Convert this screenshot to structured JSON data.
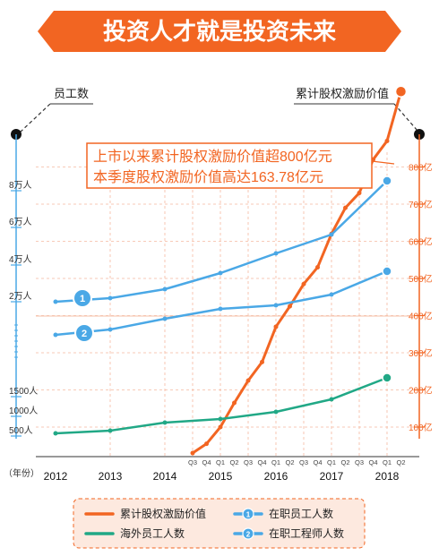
{
  "banner": {
    "title": "投资人才就是投资未来",
    "color": "#f26522"
  },
  "left_axis_title": "员工数",
  "right_axis_title": "累计股权激励价值",
  "callout": {
    "line1": "上市以来累计股权激励价值超800亿元",
    "line2": "本季度股权激励价值高达163.78亿元"
  },
  "year_axis_label": "（年份）",
  "legend": [
    {
      "label": "累计股权激励价值",
      "color": "#f26522",
      "marker": "none"
    },
    {
      "label": "在职员工人数",
      "color": "#4aa8e6",
      "marker": "1"
    },
    {
      "label": "海外员工人数",
      "color": "#21a886",
      "marker": "none"
    },
    {
      "label": "在职工程师人数",
      "color": "#4aa8e6",
      "marker": "2"
    }
  ],
  "chart_data": {
    "type": "line",
    "colors": {
      "equity": "#f26522",
      "staff": "#4aa8e6",
      "engineers": "#4aa8e6",
      "overseas": "#21a886",
      "grid": "#f5b9a0"
    },
    "years": [
      "2012",
      "2013",
      "2014",
      "2015",
      "2016",
      "2017",
      "2018"
    ],
    "quarters": [
      "Q3",
      "Q4",
      "Q1",
      "Q2",
      "Q3",
      "Q4",
      "Q1",
      "Q2",
      "Q3",
      "Q4",
      "Q1",
      "Q2",
      "Q3",
      "Q4",
      "Q1",
      "Q2"
    ],
    "left_axis_ticks": [
      "8万人",
      "6万人",
      "4万人",
      "2万人",
      "1500人",
      "1000人",
      "500人"
    ],
    "right_axis_ticks": [
      "800亿",
      "700亿",
      "600亿",
      "500亿",
      "400亿",
      "300亿",
      "200亿",
      "100亿"
    ],
    "series": [
      {
        "name": "累计股权激励价值",
        "key": "equity",
        "axis": "right",
        "x": [
          0,
          1,
          2,
          3,
          4,
          5,
          6,
          7,
          8,
          9,
          10,
          11,
          12,
          13,
          14,
          15
        ],
        "y": [
          30,
          55,
          100,
          165,
          225,
          275,
          370,
          425,
          485,
          530,
          620,
          690,
          730,
          820,
          870,
          1003
        ]
      },
      {
        "name": "在职员工人数",
        "key": "staff",
        "axis": "left",
        "marker": "1",
        "x": [
          "2012",
          "2013",
          "2014",
          "2015",
          "2016",
          "2017",
          "2018"
        ],
        "y": [
          20000,
          23000,
          28000,
          38000,
          48000,
          57000,
          82000
        ]
      },
      {
        "name": "在职工程师人数",
        "key": "engineers",
        "axis": "left",
        "marker": "2",
        "x": [
          "2012",
          "2013",
          "2014",
          "2015",
          "2016",
          "2017",
          "2018"
        ],
        "y": [
          10000,
          12500,
          16000,
          20000,
          22000,
          27000,
          35000
        ]
      },
      {
        "name": "海外员工人数",
        "key": "overseas",
        "axis": "left",
        "x": [
          "2012",
          "2013",
          "2014",
          "2015",
          "2016",
          "2017",
          "2018"
        ],
        "y": [
          500,
          600,
          800,
          900,
          1100,
          1400,
          1900
        ]
      }
    ]
  }
}
